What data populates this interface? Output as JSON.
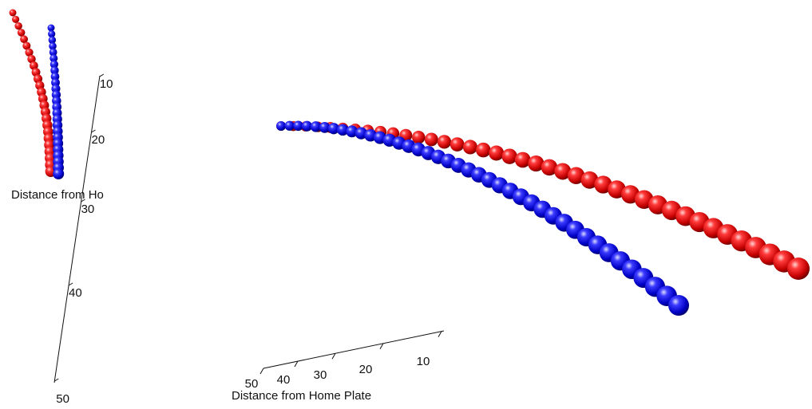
{
  "chart_data": [
    {
      "type": "scatter",
      "view": "3d-end-on",
      "axis": {
        "label": "Distance from Ho",
        "ticks": [
          10,
          20,
          30,
          40,
          50
        ]
      },
      "series": [
        {
          "color": "#d00000",
          "points": 25
        },
        {
          "color": "#0000d0",
          "points": 25
        }
      ]
    },
    {
      "type": "scatter",
      "view": "3d-side",
      "axis": {
        "label": "Distance from Home Plate",
        "ticks": [
          50,
          40,
          30,
          20,
          10
        ]
      },
      "series": [
        {
          "color": "#d00000",
          "points": 40
        },
        {
          "color": "#0000d0",
          "points": 40
        }
      ]
    }
  ]
}
